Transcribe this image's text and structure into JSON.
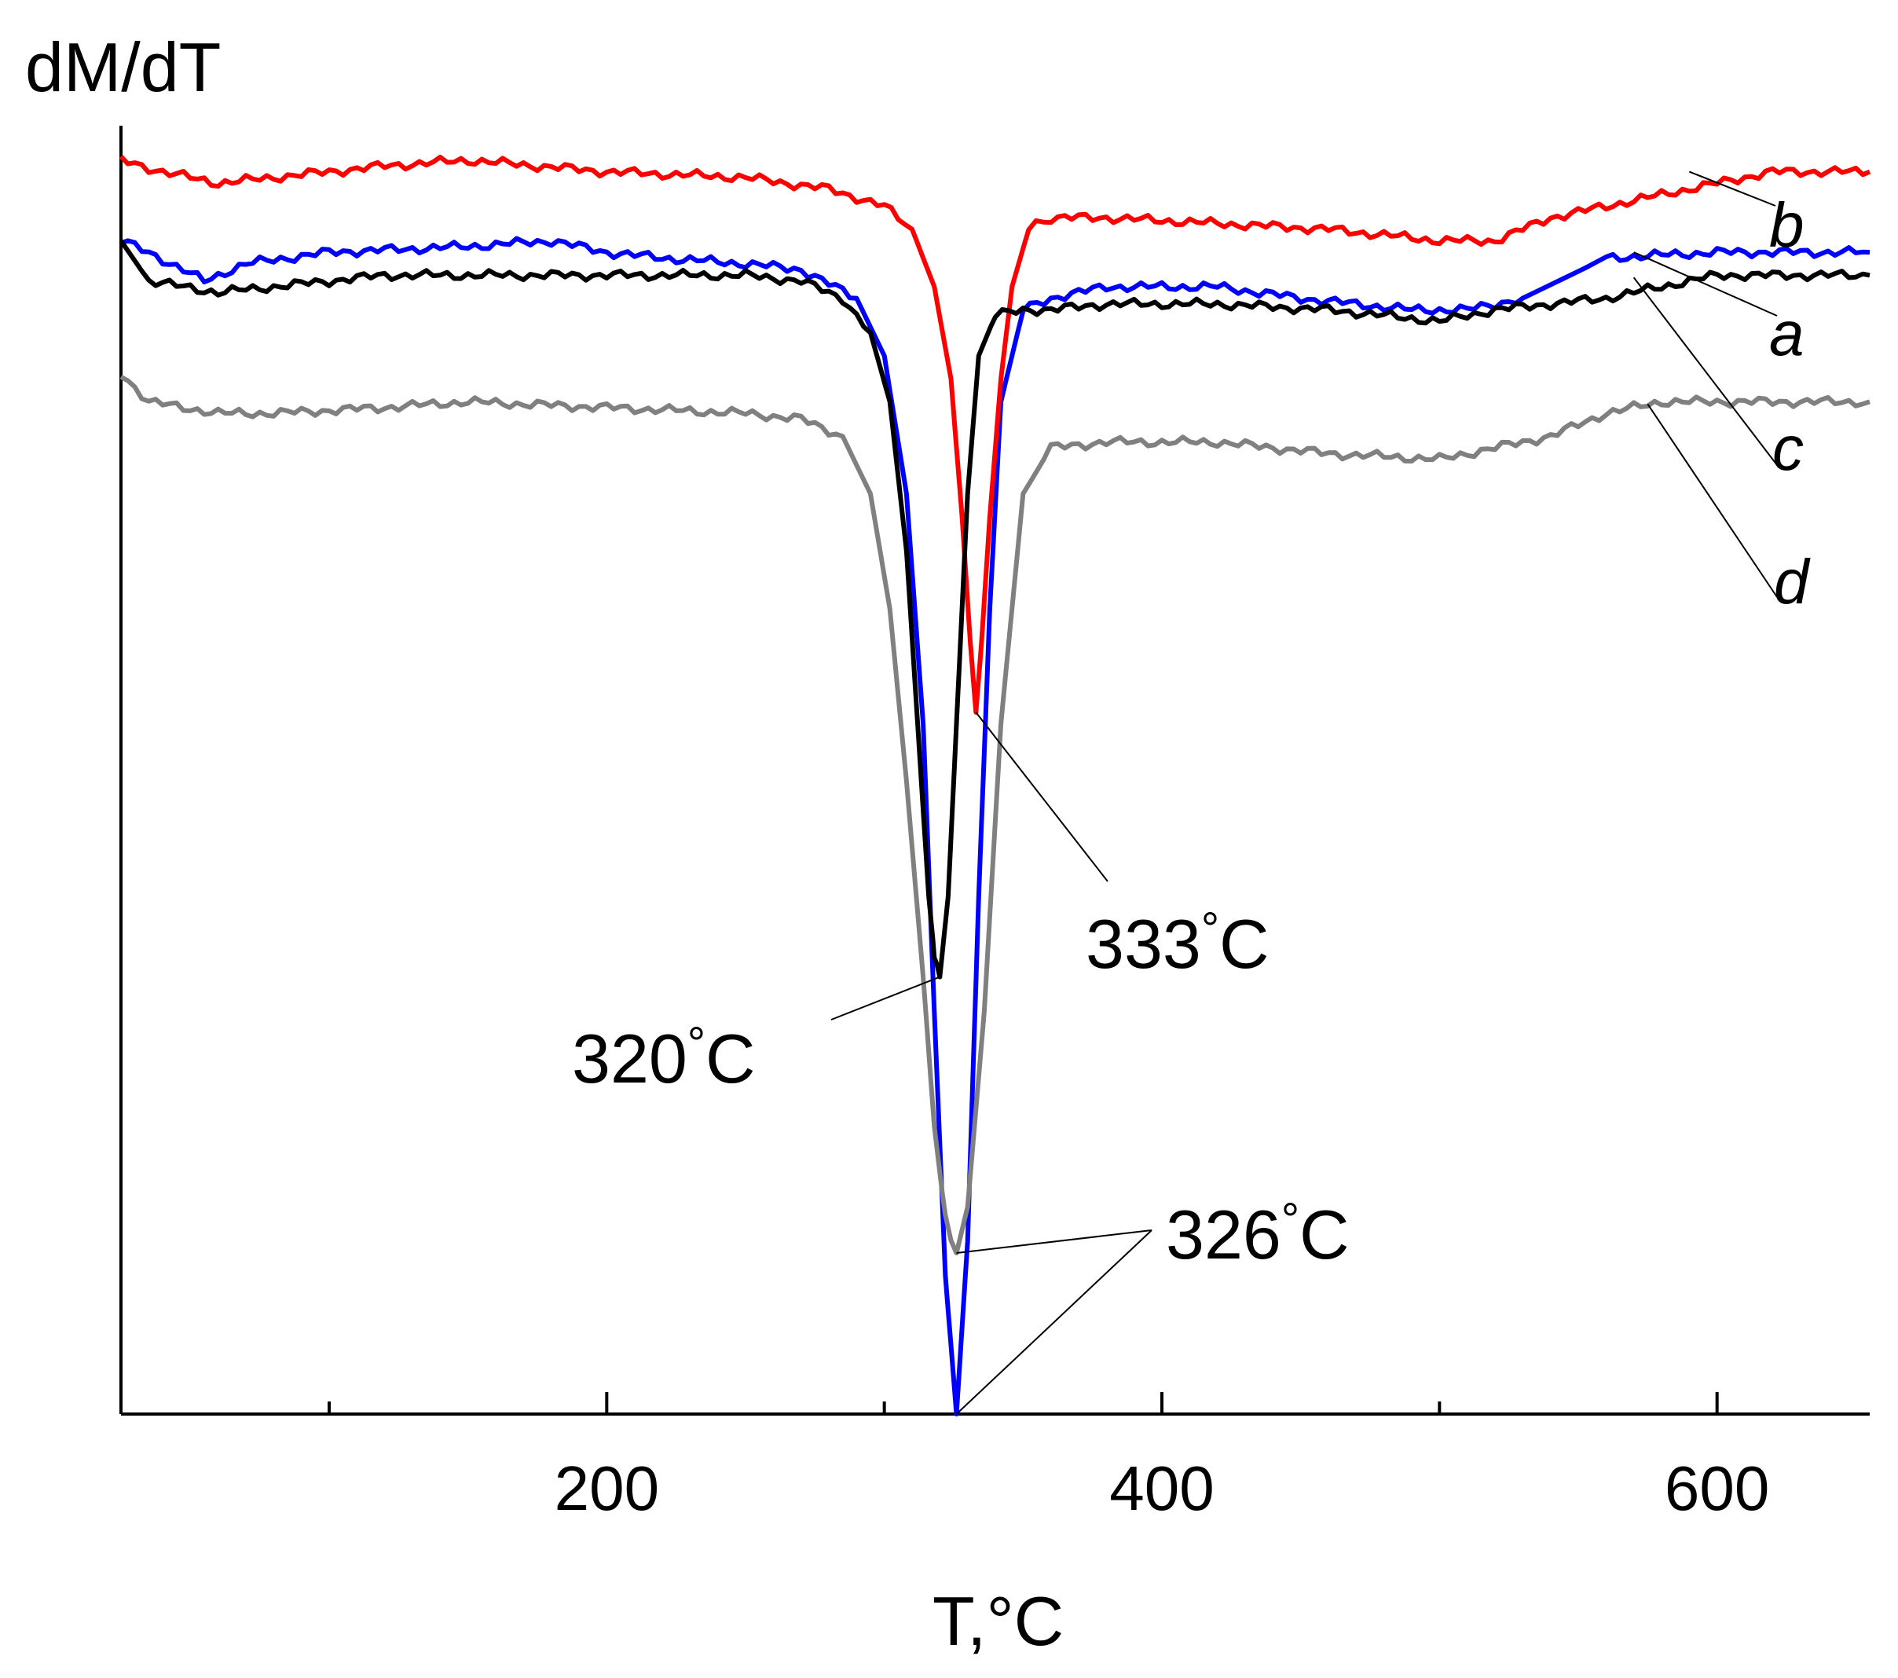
{
  "chart_data": {
    "type": "line",
    "title": "",
    "ylabel": "dM/dT",
    "xlabel": "T,°C",
    "xlim": [
      25,
      655
    ],
    "ylim": [
      -100,
      12
    ],
    "x_ticks": {
      "major": [
        200,
        400,
        600
      ],
      "minor": [
        100,
        300,
        500
      ]
    },
    "grid": false,
    "series": [
      {
        "name": "a",
        "color": "#0000ff",
        "x": [
          25,
          35,
          55,
          70,
          100,
          150,
          180,
          200,
          220,
          250,
          270,
          290,
          300,
          308,
          314,
          318,
          322,
          326,
          330,
          334,
          338,
          342,
          350,
          360,
          380,
          420,
          450,
          470,
          490,
          510,
          530,
          560,
          600,
          655
        ],
        "y": [
          2,
          1,
          -1.5,
          0,
          1,
          1.5,
          2,
          1,
          0.5,
          0,
          -0.5,
          -3,
          -8,
          -20,
          -40,
          -65,
          -88,
          -100,
          -85,
          -55,
          -30,
          -12,
          -4,
          -3,
          -2,
          -2,
          -3,
          -3.5,
          -4,
          -4,
          -3,
          0.5,
          1,
          1
        ]
      },
      {
        "name": "b",
        "color": "#ff0000",
        "x": [
          25,
          40,
          60,
          80,
          120,
          150,
          200,
          250,
          280,
          300,
          310,
          318,
          324,
          328,
          331,
          333,
          335,
          338,
          342,
          346,
          352,
          360,
          380,
          420,
          460,
          500,
          520,
          540,
          580,
          620,
          655
        ],
        "y": [
          9,
          8,
          7,
          7.5,
          8.5,
          9,
          8,
          7.5,
          6.5,
          5,
          3,
          -2,
          -10,
          -22,
          -33,
          -39,
          -33,
          -22,
          -10,
          -2,
          3,
          4,
          4,
          3.5,
          3,
          2,
          2,
          4,
          6,
          8,
          8
        ]
      },
      {
        "name": "c",
        "color": "#000000",
        "x": [
          25,
          35,
          60,
          80,
          120,
          150,
          200,
          250,
          270,
          285,
          295,
          302,
          308,
          312,
          316,
          318,
          320,
          323,
          326,
          330,
          334,
          340,
          350,
          360,
          380,
          420,
          460,
          500,
          520,
          560,
          600,
          655
        ],
        "y": [
          2,
          -1.5,
          -2.5,
          -2,
          -1,
          -1,
          -1,
          -1,
          -1.5,
          -3,
          -6,
          -12,
          -25,
          -40,
          -55,
          -60,
          -62,
          -55,
          -40,
          -20,
          -8,
          -4.5,
          -4,
          -4,
          -3.5,
          -3.5,
          -4,
          -5,
          -4,
          -3,
          -1,
          -1
        ]
      },
      {
        "name": "d",
        "color": "#808080",
        "x": [
          25,
          35,
          60,
          80,
          120,
          150,
          200,
          250,
          270,
          285,
          295,
          302,
          308,
          314,
          318,
          322,
          326,
          330,
          336,
          342,
          350,
          360,
          380,
          420,
          460,
          500,
          520,
          540,
          560,
          580,
          600,
          655
        ],
        "y": [
          -9.5,
          -12,
          -13,
          -13,
          -12.5,
          -12,
          -12.5,
          -13,
          -13.5,
          -15,
          -20,
          -30,
          -45,
          -62,
          -75,
          -83,
          -86,
          -82,
          -65,
          -40,
          -20,
          -16,
          -15.5,
          -15.5,
          -16.5,
          -17,
          -16,
          -15,
          -13,
          -12,
          -12,
          -12
        ]
      }
    ],
    "annotations": {
      "peak_333": {
        "value": "333",
        "unit": "°C",
        "x": 333,
        "y": -39
      },
      "peak_320": {
        "value": "320",
        "unit": "°C",
        "x": 320,
        "y": -62
      },
      "peak_326": {
        "value": "326",
        "unit": "°C",
        "targets": [
          {
            "x": 326,
            "y": -86
          },
          {
            "x": 326,
            "y": -100
          }
        ]
      }
    },
    "series_label_anchors": {
      "b": {
        "x": 590,
        "y": 8
      },
      "a": {
        "x": 570,
        "y": 1
      },
      "c": {
        "x": 570,
        "y": -1.2
      },
      "d": {
        "x": 575,
        "y": -12.2
      }
    }
  }
}
